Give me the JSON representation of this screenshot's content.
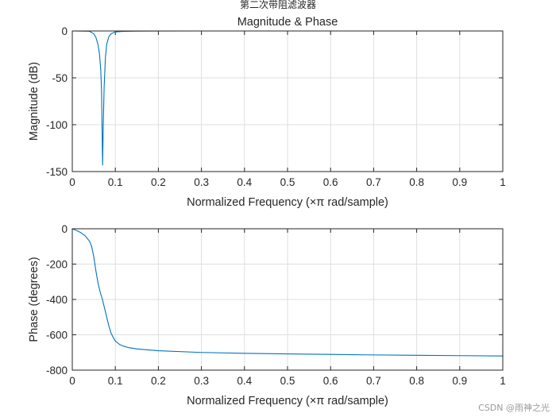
{
  "figure_title": "第二次带阻滤波器",
  "watermark": "CSDN @雨神之光",
  "colors": {
    "line": "#0072BD",
    "grid": "#DFDFDF",
    "axis": "#262626",
    "background": "#FFFFFF"
  },
  "chart_data": [
    {
      "type": "line",
      "title": "Magnitude & Phase",
      "xlabel": "Normalized Frequency  (×π rad/sample)",
      "ylabel": "Magnitude (dB)",
      "xlim": [
        0,
        1
      ],
      "ylim": [
        -150,
        0
      ],
      "xticks": [
        "0",
        "0.1",
        "0.2",
        "0.3",
        "0.4",
        "0.5",
        "0.6",
        "0.7",
        "0.8",
        "0.9",
        "1"
      ],
      "yticks": [
        "0",
        "-50",
        "-100",
        "-150"
      ],
      "grid": true,
      "series": [
        {
          "name": "magnitude",
          "x": [
            0,
            0.04,
            0.05,
            0.055,
            0.06,
            0.063,
            0.066,
            0.068,
            0.0695,
            0.0705,
            0.072,
            0.074,
            0.077,
            0.08,
            0.085,
            0.09,
            0.1,
            0.12,
            0.15,
            0.2,
            0.3,
            0.5,
            0.7,
            1
          ],
          "y": [
            0,
            -0.3,
            -3,
            -7,
            -15,
            -24,
            -40,
            -65,
            -115,
            -143,
            -100,
            -60,
            -28,
            -14,
            -6,
            -3,
            -1,
            -0.4,
            -0.15,
            -0.05,
            0,
            0,
            0,
            0
          ]
        }
      ]
    },
    {
      "type": "line",
      "title": "",
      "xlabel": "Normalized Frequency  (×π rad/sample)",
      "ylabel": "Phase (degrees)",
      "xlim": [
        0,
        1
      ],
      "ylim": [
        -800,
        0
      ],
      "xticks": [
        "0",
        "0.1",
        "0.2",
        "0.3",
        "0.4",
        "0.5",
        "0.6",
        "0.7",
        "0.8",
        "0.9",
        "1"
      ],
      "yticks": [
        "0",
        "-200",
        "-400",
        "-600",
        "-800"
      ],
      "grid": true,
      "series": [
        {
          "name": "phase",
          "x": [
            0,
            0.01,
            0.02,
            0.03,
            0.04,
            0.045,
            0.05,
            0.055,
            0.06,
            0.065,
            0.07,
            0.075,
            0.08,
            0.085,
            0.09,
            0.095,
            0.1,
            0.11,
            0.12,
            0.13,
            0.15,
            0.2,
            0.3,
            0.4,
            0.5,
            0.6,
            0.7,
            0.8,
            0.9,
            1
          ],
          "y": [
            0,
            -10,
            -22,
            -40,
            -70,
            -100,
            -160,
            -240,
            -310,
            -360,
            -400,
            -450,
            -500,
            -550,
            -590,
            -615,
            -635,
            -655,
            -665,
            -672,
            -680,
            -690,
            -700,
            -705,
            -708,
            -711,
            -714,
            -716,
            -718,
            -720
          ]
        }
      ]
    }
  ]
}
